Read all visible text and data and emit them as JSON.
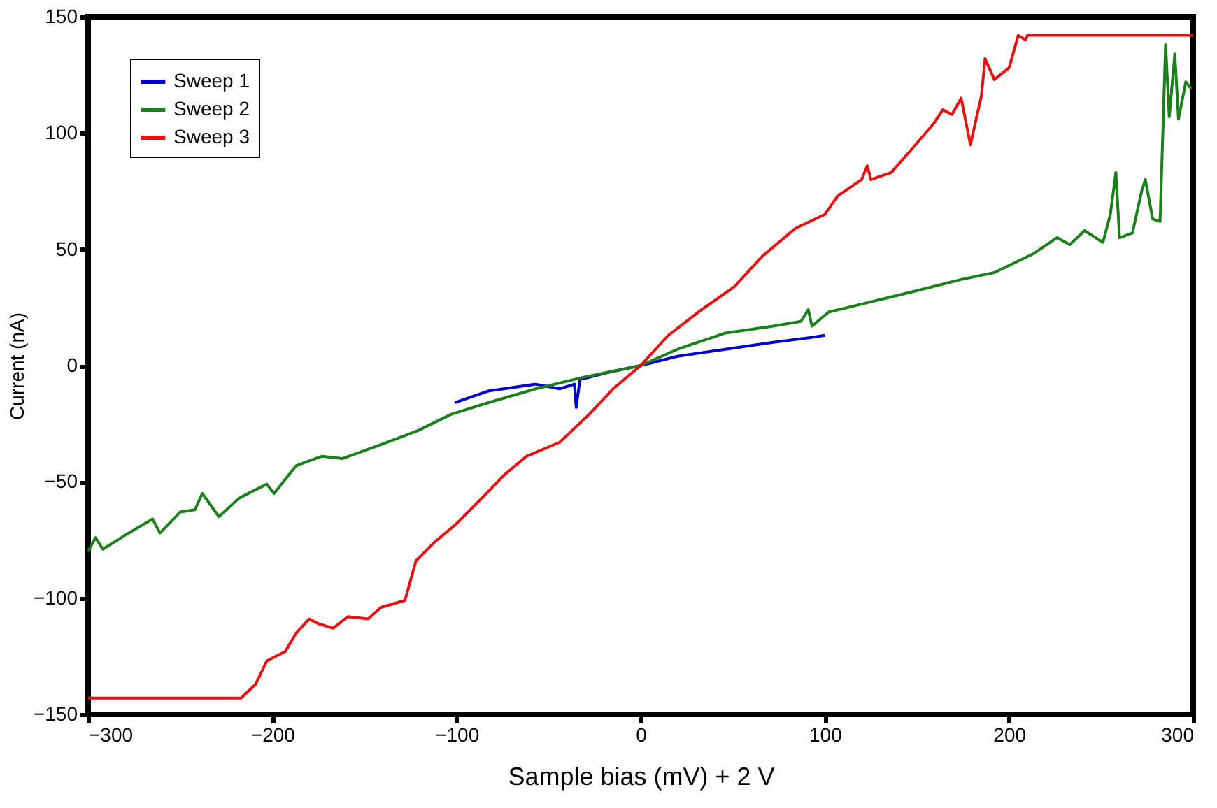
{
  "chart_data": {
    "type": "line",
    "xlabel": "Sample bias (mV) + 2 V",
    "ylabel": "Current (nA)",
    "xlim": [
      -300,
      300
    ],
    "ylim": [
      -150,
      150
    ],
    "xticks": [
      -300,
      -200,
      -100,
      0,
      100,
      200,
      300
    ],
    "yticks": [
      -150,
      -100,
      -50,
      0,
      50,
      100,
      150
    ],
    "grid": false,
    "legend": "top left",
    "marker": "none",
    "line_style": "solid",
    "series": [
      {
        "name": "Sweep 1",
        "color": "#0000cc",
        "x": [
          -101,
          -83,
          -57,
          -44,
          -36,
          -35,
          -33,
          -18,
          0,
          20,
          46,
          72,
          92,
          100
        ],
        "values": [
          -16,
          -11,
          -8,
          -10,
          -8,
          -18,
          -6,
          -3,
          0,
          4,
          7,
          10,
          12,
          13
        ]
      },
      {
        "name": "Sweep 2",
        "color": "#1a801a",
        "x": [
          -300,
          -296,
          -292,
          -280,
          -265,
          -261,
          -250,
          -242,
          -238,
          -229,
          -218,
          -203,
          -199,
          -187,
          -173,
          -162,
          -141,
          -121,
          -103,
          -83,
          -57,
          -31,
          0,
          20,
          46,
          72,
          87,
          91,
          93,
          102,
          123,
          149,
          174,
          192,
          213,
          226,
          233,
          241,
          251,
          255,
          258,
          260,
          267,
          272,
          274,
          278,
          282,
          285,
          287,
          290,
          292,
          296,
          299
        ],
        "values": [
          -80,
          -74,
          -79,
          -73,
          -66,
          -72,
          -63,
          -62,
          -55,
          -65,
          -57,
          -51,
          -55,
          -43,
          -39,
          -40,
          -34,
          -28,
          -21,
          -16,
          -10,
          -5,
          0,
          7,
          14,
          17,
          19,
          24,
          17,
          23,
          27,
          32,
          37,
          40,
          48,
          55,
          52,
          58,
          53,
          65,
          83,
          55,
          57,
          75,
          80,
          63,
          62,
          138,
          107,
          134,
          106,
          122,
          119
        ]
      },
      {
        "name": "Sweep 3",
        "color": "#e81010",
        "x": [
          -300,
          -217,
          -209,
          -203,
          -198,
          -193,
          -187,
          -180,
          -175,
          -167,
          -159,
          -148,
          -141,
          -128,
          -122,
          -112,
          -100,
          -85,
          -74,
          -62,
          -44,
          -28,
          -15,
          0,
          15,
          33,
          51,
          66,
          84,
          100,
          107,
          120,
          123,
          125,
          136,
          146,
          159,
          164,
          169,
          174,
          179,
          185,
          187,
          192,
          200,
          205,
          209,
          210,
          300
        ],
        "values": [
          -143,
          -143,
          -137,
          -127,
          -125,
          -123,
          -115,
          -109,
          -111,
          -113,
          -108,
          -109,
          -104,
          -101,
          -84,
          -76,
          -68,
          -56,
          -47,
          -39,
          -33,
          -21,
          -10,
          0,
          13,
          24,
          34,
          47,
          59,
          65,
          73,
          80,
          86,
          80,
          83,
          92,
          104,
          110,
          108,
          115,
          95,
          116,
          132,
          123,
          128,
          142,
          140,
          142,
          142
        ]
      }
    ]
  }
}
